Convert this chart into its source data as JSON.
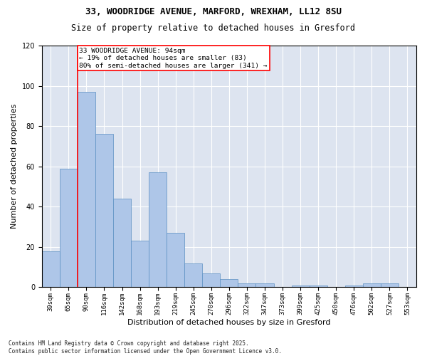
{
  "title1": "33, WOODRIDGE AVENUE, MARFORD, WREXHAM, LL12 8SU",
  "title2": "Size of property relative to detached houses in Gresford",
  "xlabel": "Distribution of detached houses by size in Gresford",
  "ylabel": "Number of detached properties",
  "categories": [
    "39sqm",
    "65sqm",
    "90sqm",
    "116sqm",
    "142sqm",
    "168sqm",
    "193sqm",
    "219sqm",
    "245sqm",
    "270sqm",
    "296sqm",
    "322sqm",
    "347sqm",
    "373sqm",
    "399sqm",
    "425sqm",
    "450sqm",
    "476sqm",
    "502sqm",
    "527sqm",
    "553sqm"
  ],
  "bar_values": [
    18,
    59,
    97,
    76,
    44,
    23,
    57,
    27,
    12,
    7,
    4,
    2,
    2,
    0,
    1,
    1,
    0,
    1,
    2,
    2,
    0
  ],
  "bar_color": "#aec6e8",
  "bar_edgecolor": "#5a8fc2",
  "vline_bar_index": 2,
  "vline_color": "red",
  "annotation_text": "33 WOODRIDGE AVENUE: 94sqm\n← 19% of detached houses are smaller (83)\n80% of semi-detached houses are larger (341) →",
  "ylim": [
    0,
    120
  ],
  "yticks": [
    0,
    20,
    40,
    60,
    80,
    100,
    120
  ],
  "background_color": "#dde4f0",
  "grid_color": "white",
  "footer": "Contains HM Land Registry data © Crown copyright and database right 2025.\nContains public sector information licensed under the Open Government Licence v3.0.",
  "title_fontsize": 9,
  "subtitle_fontsize": 8.5,
  "ylabel_fontsize": 8,
  "xlabel_fontsize": 8,
  "tick_fontsize": 6.5,
  "ann_fontsize": 6.8,
  "footer_fontsize": 5.5
}
